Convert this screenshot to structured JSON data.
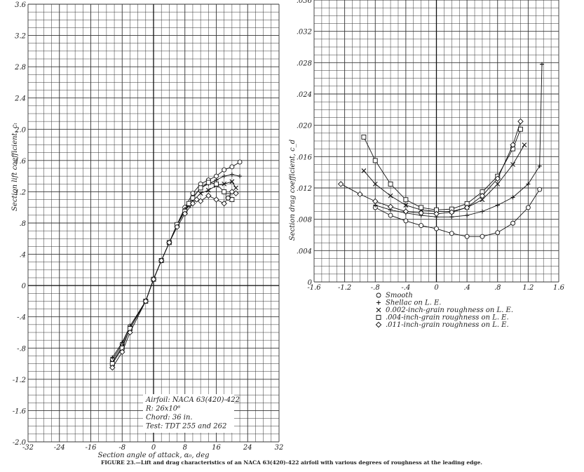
{
  "caption": "FIGURE 23.—Lift and drag characteristics of an NACA 63(420)-422 airfoil with various degrees of roughness at the leading edge.",
  "chart_data": [
    {
      "type": "line",
      "xlabel": "Section angle of attack, α₀, deg",
      "ylabel": "Section lift coefficient, cₗ",
      "xlim": [
        -32,
        32
      ],
      "ylim": [
        -2.0,
        3.6
      ],
      "x_ticks": [
        "-32",
        "-24",
        "-16",
        "-8",
        "0",
        "8",
        "16",
        "24",
        "32"
      ],
      "y_ticks": [
        "-2.0",
        "-1.6",
        "-1.2",
        "-.8",
        "-.4",
        "0",
        ".4",
        ".8",
        "1.2",
        "1.6",
        "2.0",
        "2.4",
        "2.8",
        "3.2",
        "3.6"
      ],
      "grid": true,
      "annotation": [
        "Airfoil: NACA 63(420)-422",
        "R: 26x10⁶",
        "Chord: 36 in.",
        "Test: TDT 255 and 262"
      ],
      "series": [
        {
          "marker": "circle",
          "x": [
            -10.5,
            -8,
            -6,
            -2,
            0,
            2,
            4,
            6,
            8,
            10,
            12,
            14,
            16,
            18,
            20,
            22
          ],
          "y": [
            -0.95,
            -0.75,
            -0.52,
            -0.2,
            0.08,
            0.32,
            0.55,
            0.78,
            1.0,
            1.18,
            1.3,
            1.35,
            1.4,
            1.48,
            1.52,
            1.58
          ]
        },
        {
          "marker": "plus",
          "x": [
            -10.5,
            -8,
            -6,
            -2,
            0,
            2,
            4,
            6,
            8,
            10,
            12,
            14,
            16,
            18,
            20,
            22
          ],
          "y": [
            -0.92,
            -0.73,
            -0.52,
            -0.2,
            0.08,
            0.32,
            0.55,
            0.78,
            0.98,
            1.12,
            1.25,
            1.3,
            1.35,
            1.4,
            1.42,
            1.4
          ]
        },
        {
          "marker": "cross",
          "x": [
            -10.5,
            -8,
            -6,
            -2,
            0,
            2,
            4,
            6,
            8,
            9,
            10,
            12,
            14,
            16,
            18,
            20,
            21
          ],
          "y": [
            -0.98,
            -0.78,
            -0.55,
            -0.2,
            0.08,
            0.32,
            0.55,
            0.78,
            0.95,
            1.02,
            1.08,
            1.18,
            1.22,
            1.28,
            1.3,
            1.33,
            1.25
          ]
        },
        {
          "marker": "square",
          "x": [
            -10.5,
            -8,
            -6,
            -2,
            0,
            2,
            4,
            6,
            8,
            9,
            10,
            12,
            14,
            16,
            18,
            19,
            20
          ],
          "y": [
            -1.0,
            -0.8,
            -0.55,
            -0.2,
            0.08,
            0.32,
            0.55,
            0.78,
            0.95,
            1.05,
            1.12,
            1.25,
            1.32,
            1.3,
            1.2,
            1.15,
            1.1
          ]
        },
        {
          "marker": "diamond",
          "x": [
            -10.5,
            -8,
            -6,
            -2,
            0,
            2,
            4,
            6,
            8,
            10,
            11,
            12,
            14,
            16,
            18,
            19,
            20,
            21
          ],
          "y": [
            -1.05,
            -0.85,
            -0.6,
            -0.2,
            0.08,
            0.32,
            0.55,
            0.75,
            0.92,
            1.05,
            1.1,
            1.08,
            1.15,
            1.1,
            1.05,
            1.12,
            1.2,
            1.18
          ]
        }
      ]
    },
    {
      "type": "line",
      "xlabel": "Section lift coefficient, cₗ",
      "ylabel": "Section drag coefficient, c_d",
      "xlim": [
        -1.6,
        1.6
      ],
      "ylim": [
        0,
        0.036
      ],
      "x_ticks": [
        "-1.6",
        "-1.2",
        "-.8",
        "-.4",
        "0",
        ".4",
        ".8",
        "1.2",
        "1.6"
      ],
      "y_ticks": [
        "0",
        ".004",
        ".008",
        ".012",
        ".016",
        ".020",
        ".024",
        ".028",
        ".032",
        ".036"
      ],
      "grid": true,
      "legend": [
        "Smooth",
        "Shellac on L. E.",
        "0.002-inch-grain roughness on L. E.",
        ".004-inch-grain roughness on L. E.",
        ".011-inch-grain roughness on L. E."
      ],
      "series": [
        {
          "marker": "circle",
          "x": [
            -0.8,
            -0.6,
            -0.4,
            -0.2,
            0,
            0.2,
            0.4,
            0.6,
            0.8,
            1.0,
            1.2,
            1.35
          ],
          "y": [
            0.0095,
            0.0085,
            0.0078,
            0.0072,
            0.0068,
            0.0062,
            0.0058,
            0.0058,
            0.0063,
            0.0075,
            0.0095,
            0.0118
          ]
        },
        {
          "marker": "plus",
          "x": [
            -0.8,
            -0.6,
            -0.4,
            -0.2,
            0,
            0.2,
            0.4,
            0.6,
            0.8,
            1.0,
            1.2,
            1.35,
            1.38
          ],
          "y": [
            0.0098,
            0.0092,
            0.0088,
            0.0085,
            0.0083,
            0.0083,
            0.0085,
            0.009,
            0.0098,
            0.0108,
            0.0125,
            0.0148,
            0.0278
          ]
        },
        {
          "marker": "cross",
          "x": [
            -0.95,
            -0.8,
            -0.6,
            -0.4,
            -0.2,
            0,
            0.2,
            0.4,
            0.6,
            0.8,
            1.0,
            1.15
          ],
          "y": [
            0.0142,
            0.0125,
            0.011,
            0.0098,
            0.0092,
            0.009,
            0.009,
            0.0095,
            0.0105,
            0.0125,
            0.015,
            0.0175
          ]
        },
        {
          "marker": "square",
          "x": [
            -0.95,
            -0.8,
            -0.6,
            -0.4,
            -0.2,
            0,
            0.2,
            0.4,
            0.6,
            0.8,
            1.0,
            1.1
          ],
          "y": [
            0.0185,
            0.0155,
            0.0125,
            0.0105,
            0.0095,
            0.0092,
            0.0093,
            0.01,
            0.0115,
            0.0135,
            0.017,
            0.0195
          ]
        },
        {
          "marker": "diamond",
          "x": [
            -1.25,
            -1.0,
            -0.8,
            -0.6,
            -0.4,
            -0.2,
            0,
            0.2,
            0.4,
            0.6,
            0.8,
            1.0,
            1.1
          ],
          "y": [
            0.0125,
            0.0112,
            0.0103,
            0.0096,
            0.009,
            0.0088,
            0.0087,
            0.0089,
            0.0095,
            0.011,
            0.0132,
            0.0175,
            0.0205
          ]
        }
      ]
    }
  ]
}
